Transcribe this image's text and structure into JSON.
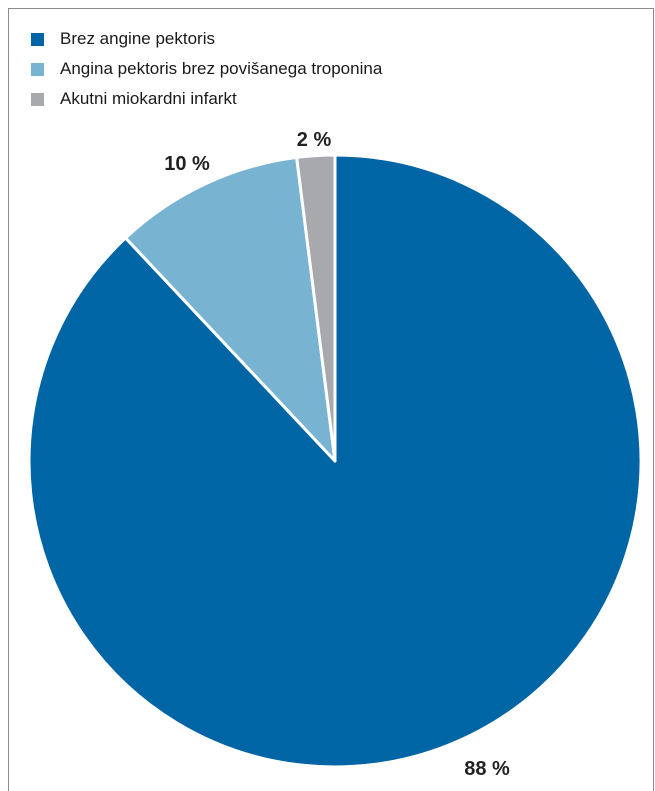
{
  "chart_data": {
    "type": "pie",
    "title": "",
    "slices": [
      {
        "label": "Brez angine pektoris",
        "value": 88,
        "display": "88 %",
        "color": "#0065a4"
      },
      {
        "label": "Angina pektoris brez povišanega troponina",
        "value": 10,
        "display": "10 %",
        "color": "#78b4d2"
      },
      {
        "label": "Akutni miokardni infarkt",
        "value": 2,
        "display": "2 %",
        "color": "#a8a9ad"
      }
    ],
    "legend_position": "top-left"
  }
}
